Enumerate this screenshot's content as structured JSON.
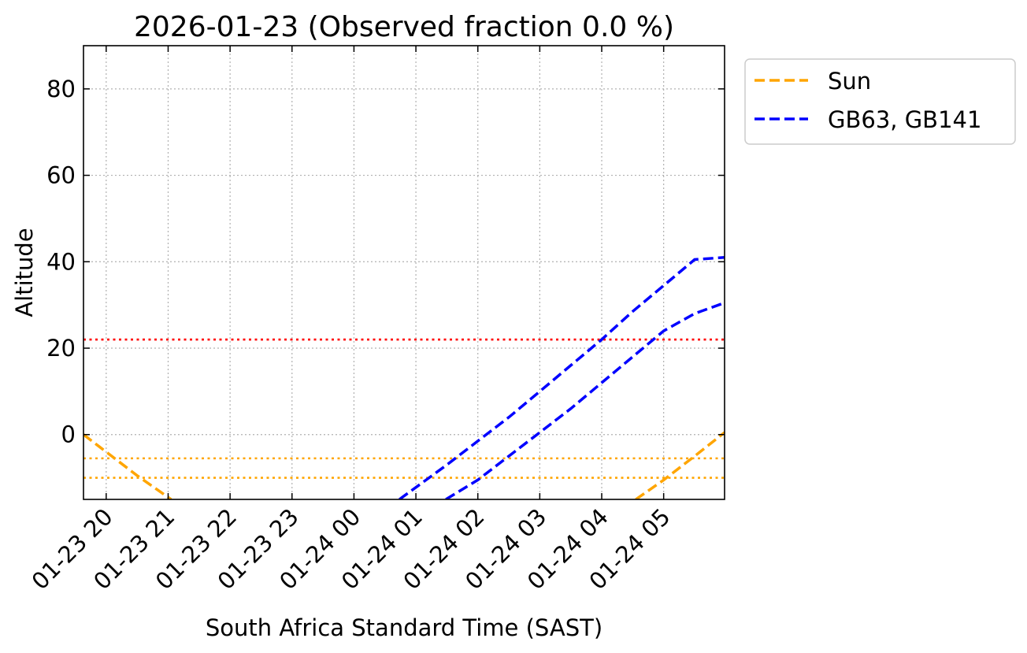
{
  "chart_data": {
    "type": "line",
    "title": "2026-01-23 (Observed fraction 0.0 %)",
    "xlabel": "South Africa Standard Time (SAST)",
    "ylabel": "Altitude",
    "xlim": [
      "2026-01-23 19:38",
      "2026-01-24 05:59"
    ],
    "ylim": [
      -15,
      90
    ],
    "x_ticks": [
      "01-23 20",
      "01-23 21",
      "01-23 22",
      "01-23 23",
      "01-24 00",
      "01-24 01",
      "01-24 02",
      "01-24 03",
      "01-24 04",
      "01-24 05"
    ],
    "x_tick_times": [
      "2026-01-23 20:00",
      "2026-01-23 21:00",
      "2026-01-23 22:00",
      "2026-01-23 23:00",
      "2026-01-24 00:00",
      "2026-01-24 01:00",
      "2026-01-24 02:00",
      "2026-01-24 03:00",
      "2026-01-24 04:00",
      "2026-01-24 05:00"
    ],
    "y_ticks": [
      0,
      20,
      40,
      60,
      80
    ],
    "grid": true,
    "legend_position": "outside-top-right",
    "series": [
      {
        "name": "Sun",
        "color": "#ffa500",
        "style": "dashed",
        "points": [
          {
            "x": "2026-01-23 19:38",
            "y": 0
          },
          {
            "x": "2026-01-23 20:00",
            "y": -4
          },
          {
            "x": "2026-01-23 20:30",
            "y": -9.5
          },
          {
            "x": "2026-01-23 21:03",
            "y": -15
          }
        ]
      },
      {
        "name": "Sun",
        "color": "#ffa500",
        "style": "dashed",
        "points": [
          {
            "x": "2026-01-24 04:33",
            "y": -15
          },
          {
            "x": "2026-01-24 05:00",
            "y": -10.5
          },
          {
            "x": "2026-01-24 05:30",
            "y": -5
          },
          {
            "x": "2026-01-24 05:59",
            "y": 0.5
          }
        ]
      },
      {
        "name": "GB63, GB141",
        "color": "#0000ff",
        "style": "dashed",
        "points": [
          {
            "x": "2026-01-24 00:44",
            "y": -15
          },
          {
            "x": "2026-01-24 01:30",
            "y": -7
          },
          {
            "x": "2026-01-24 02:00",
            "y": -1.5
          },
          {
            "x": "2026-01-24 02:30",
            "y": 4
          },
          {
            "x": "2026-01-24 03:00",
            "y": 10
          },
          {
            "x": "2026-01-24 03:30",
            "y": 16
          },
          {
            "x": "2026-01-24 04:00",
            "y": 22
          },
          {
            "x": "2026-01-24 04:30",
            "y": 28.5
          },
          {
            "x": "2026-01-24 05:00",
            "y": 34.5
          },
          {
            "x": "2026-01-24 05:30",
            "y": 40.5
          },
          {
            "x": "2026-01-24 05:59",
            "y": 41
          }
        ]
      },
      {
        "name": "GB63, GB141",
        "color": "#0000ff",
        "style": "dashed",
        "points": [
          {
            "x": "2026-01-24 01:29",
            "y": -15
          },
          {
            "x": "2026-01-24 02:00",
            "y": -10.5
          },
          {
            "x": "2026-01-24 02:30",
            "y": -5
          },
          {
            "x": "2026-01-24 03:00",
            "y": 0.5
          },
          {
            "x": "2026-01-24 03:30",
            "y": 6
          },
          {
            "x": "2026-01-24 04:00",
            "y": 12
          },
          {
            "x": "2026-01-24 04:30",
            "y": 18
          },
          {
            "x": "2026-01-24 05:00",
            "y": 24
          },
          {
            "x": "2026-01-24 05:30",
            "y": 28
          },
          {
            "x": "2026-01-24 05:59",
            "y": 30.5
          }
        ]
      }
    ],
    "reference_lines": [
      {
        "y": 22,
        "color": "#ff0000",
        "style": "dotted"
      },
      {
        "y": -5.5,
        "color": "#ffa500",
        "style": "dotted"
      },
      {
        "y": -10,
        "color": "#ffa500",
        "style": "dotted"
      }
    ],
    "legend": [
      {
        "label": "Sun",
        "color": "#ffa500"
      },
      {
        "label": "GB63, GB141",
        "color": "#0000ff"
      }
    ]
  }
}
